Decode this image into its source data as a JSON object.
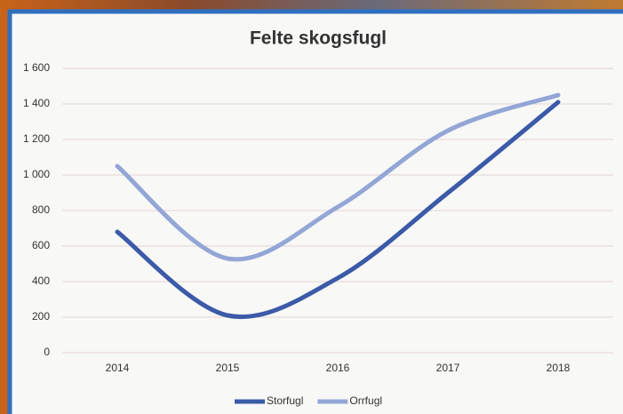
{
  "chart_data": {
    "type": "line",
    "title": "Felte skogsfugl",
    "categories": [
      "2014",
      "2015",
      "2016",
      "2017",
      "2018"
    ],
    "series": [
      {
        "name": "Storfugl",
        "color": "#3b5aa8",
        "values": [
          680,
          210,
          420,
          900,
          1410
        ]
      },
      {
        "name": "Orrfugl",
        "color": "#93a6d6",
        "values": [
          1050,
          530,
          820,
          1250,
          1450
        ]
      }
    ],
    "ylim": [
      0,
      1600
    ],
    "yticks": [
      0,
      200,
      400,
      600,
      800,
      {
        "value": 1000,
        "label": "1 000"
      },
      {
        "value": 1200,
        "label": "1 200"
      },
      {
        "value": 1400,
        "label": "1 400"
      },
      {
        "value": 1600,
        "label": "1 600"
      }
    ],
    "grid": true,
    "legend": "bottom"
  }
}
